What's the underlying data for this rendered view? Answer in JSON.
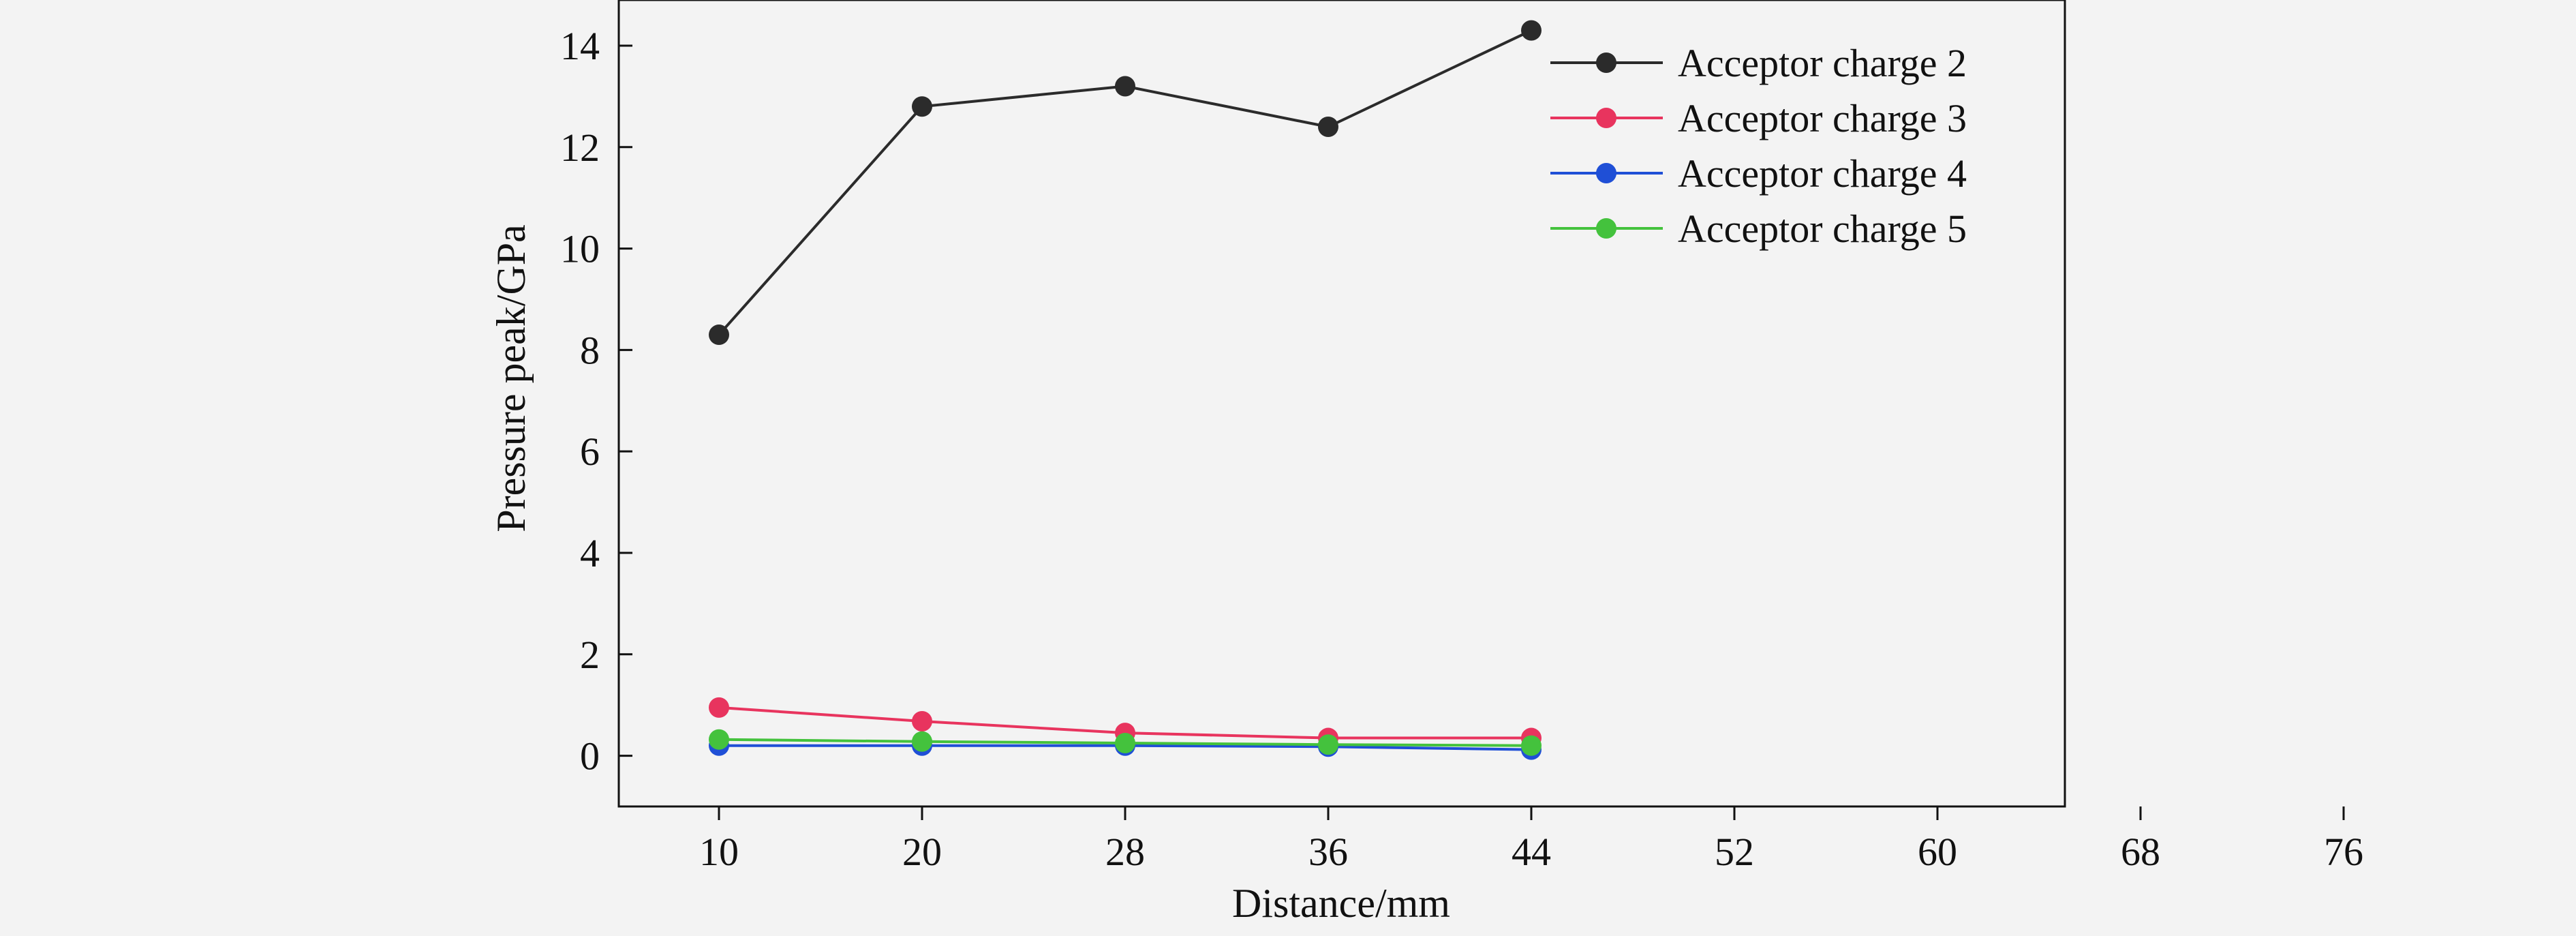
{
  "chart_data": {
    "type": "line",
    "title": "",
    "xlabel": "Distance/mm",
    "ylabel": "Pressure peak/GPa",
    "x_ticks": [
      "10",
      "20",
      "28",
      "36",
      "44",
      "52",
      "60",
      "68",
      "76"
    ],
    "y_ticks": [
      0,
      2,
      4,
      6,
      8,
      10,
      12,
      14
    ],
    "ylim": [
      -1,
      14.9
    ],
    "grid": false,
    "legend_position": "top-right",
    "x": [
      "10",
      "20",
      "28",
      "36",
      "44"
    ],
    "series": [
      {
        "name": "Acceptor charge 2",
        "color": "#2b2b2b",
        "values": [
          8.3,
          12.8,
          13.2,
          12.4,
          14.3
        ]
      },
      {
        "name": "Acceptor charge 3",
        "color": "#e8345e",
        "values": [
          0.95,
          0.68,
          0.45,
          0.35,
          0.35
        ]
      },
      {
        "name": "Acceptor charge 4",
        "color": "#1f4fd6",
        "values": [
          0.2,
          0.2,
          0.2,
          0.18,
          0.12
        ]
      },
      {
        "name": "Acceptor charge 5",
        "color": "#44c23d",
        "values": [
          0.32,
          0.28,
          0.25,
          0.22,
          0.2
        ]
      }
    ]
  }
}
